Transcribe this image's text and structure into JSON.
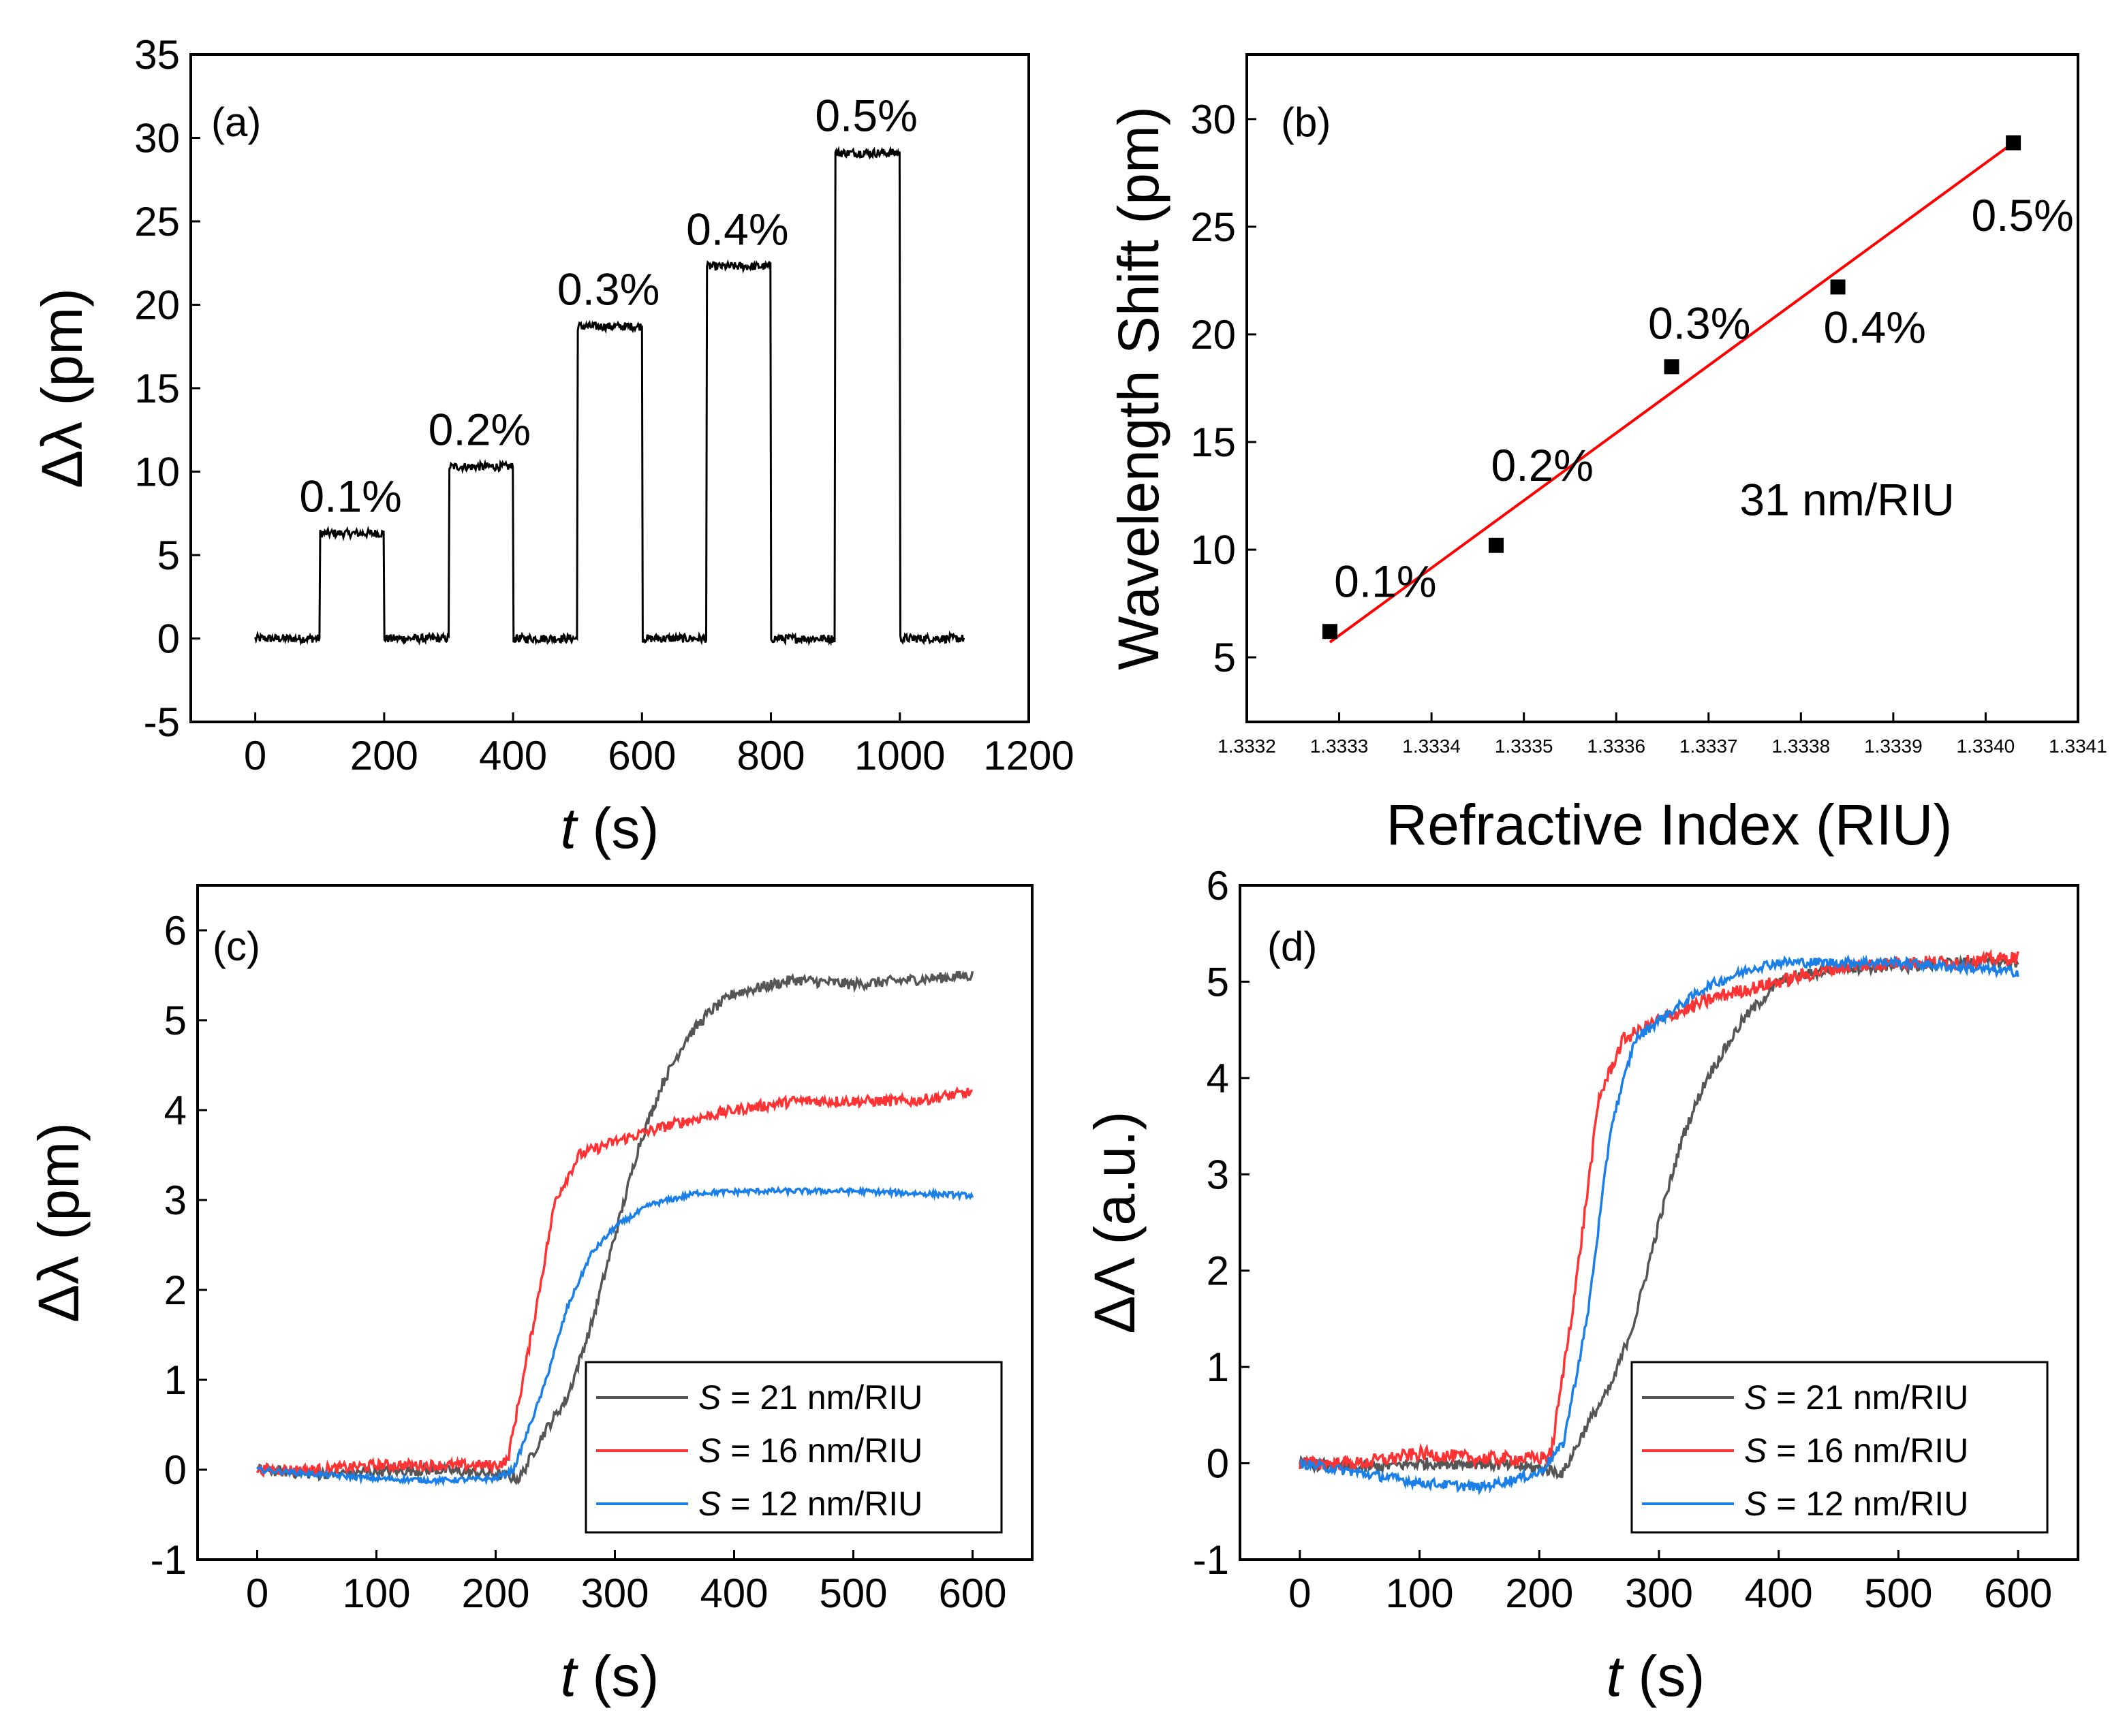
{
  "chart_data": [
    {
      "id": "a",
      "type": "line",
      "panel_label": "(a)",
      "xlabel_italic": "t",
      "xlabel_rest": " (s)",
      "ylabel": "Δλ (pm)",
      "xlim": [
        -100,
        1200
      ],
      "ylim": [
        -5,
        35
      ],
      "xticks": [
        0,
        200,
        400,
        600,
        800,
        1000,
        1200
      ],
      "xtick_labels": [
        "0",
        "200",
        "400",
        "600",
        "800",
        "1000",
        "1200"
      ],
      "yticks": [
        -5,
        0,
        5,
        10,
        15,
        20,
        25,
        30,
        35
      ],
      "ytick_labels": [
        "-5",
        "0",
        "5",
        "10",
        "15",
        "20",
        "25",
        "30",
        "35"
      ],
      "series": [
        {
          "name": "step response",
          "color": "#000000",
          "steps": [
            {
              "start": 100,
              "end": 200,
              "level": 6.3
            },
            {
              "start": 300,
              "end": 400,
              "level": 10.3
            },
            {
              "start": 500,
              "end": 600,
              "level": 18.7
            },
            {
              "start": 700,
              "end": 800,
              "level": 22.3
            },
            {
              "start": 900,
              "end": 1000,
              "level": 29.1
            }
          ],
          "x_range": [
            0,
            1100
          ],
          "noise": 0.25
        }
      ],
      "annotations": [
        {
          "text": "0.1%",
          "x": 148,
          "y": 7.6
        },
        {
          "text": "0.2%",
          "x": 348,
          "y": 11.6
        },
        {
          "text": "0.3%",
          "x": 548,
          "y": 20.0
        },
        {
          "text": "0.4%",
          "x": 748,
          "y": 23.6
        },
        {
          "text": "0.5%",
          "x": 948,
          "y": 30.4
        }
      ]
    },
    {
      "id": "b",
      "type": "scatter",
      "panel_label": "(b)",
      "xlabel": "Refractive Index (RIU)",
      "ylabel": "Wavelength Shift (pm)",
      "xlim": [
        1.3332,
        1.3341
      ],
      "ylim": [
        2,
        33
      ],
      "xticks": [
        1.3332,
        1.3333,
        1.3334,
        1.3335,
        1.3336,
        1.3337,
        1.3338,
        1.3339,
        1.334,
        1.3341
      ],
      "xtick_labels": [
        "1.3332",
        "1.3333",
        "1.3334",
        "1.3335",
        "1.3336",
        "1.3337",
        "1.3338",
        "1.3339",
        "1.3340",
        "1.3341"
      ],
      "yticks": [
        5,
        10,
        15,
        20,
        25,
        30
      ],
      "ytick_labels": [
        "5",
        "10",
        "15",
        "20",
        "25",
        "30"
      ],
      "points": [
        {
          "x": 1.33329,
          "y": 6.2
        },
        {
          "x": 1.33347,
          "y": 10.2
        },
        {
          "x": 1.33366,
          "y": 18.5
        },
        {
          "x": 1.33384,
          "y": 22.2
        },
        {
          "x": 1.33403,
          "y": 28.9
        }
      ],
      "fit": {
        "x": [
          1.33329,
          1.33403
        ],
        "y": [
          5.7,
          28.9
        ],
        "color": "#ff0000"
      },
      "annotations": [
        {
          "text": "0.1%",
          "x": 1.33335,
          "y": 7.8
        },
        {
          "text": "0.2%",
          "x": 1.33352,
          "y": 13.2
        },
        {
          "text": "0.3%",
          "x": 1.33369,
          "y": 19.8
        },
        {
          "text": "0.4%",
          "x": 1.33388,
          "y": 19.6
        },
        {
          "text": "0.5%",
          "x": 1.33404,
          "y": 24.8
        },
        {
          "text": "31 nm/RIU",
          "x": 1.33385,
          "y": 11.6
        }
      ]
    },
    {
      "id": "c",
      "type": "line",
      "panel_label": "(c)",
      "xlabel_italic": "t",
      "xlabel_rest": " (s)",
      "ylabel": "Δλ (pm)",
      "xlim": [
        -50,
        650
      ],
      "ylim": [
        -1,
        6.5
      ],
      "xticks": [
        0,
        100,
        200,
        300,
        400,
        500,
        600
      ],
      "xtick_labels": [
        "0",
        "100",
        "200",
        "300",
        "400",
        "500",
        "600"
      ],
      "yticks": [
        -1,
        0,
        1,
        2,
        3,
        4,
        5,
        6
      ],
      "ytick_labels": [
        "-1",
        "0",
        "1",
        "2",
        "3",
        "4",
        "5",
        "6"
      ],
      "series": [
        {
          "name_italic": "S",
          "name_rest": " = 21 nm/RIU",
          "color": "#555555",
          "points": [
            [
              0,
              0
            ],
            [
              50,
              -0.05
            ],
            [
              100,
              -0.02
            ],
            [
              150,
              0
            ],
            [
              200,
              -0.05
            ],
            [
              220,
              -0.1
            ],
            [
              240,
              0.4
            ],
            [
              260,
              0.8
            ],
            [
              280,
              1.6
            ],
            [
              300,
              2.6
            ],
            [
              320,
              3.6
            ],
            [
              340,
              4.3
            ],
            [
              360,
              4.8
            ],
            [
              380,
              5.1
            ],
            [
              400,
              5.3
            ],
            [
              450,
              5.45
            ],
            [
              500,
              5.4
            ],
            [
              550,
              5.45
            ],
            [
              600,
              5.5
            ]
          ],
          "noise": 0.06
        },
        {
          "name_italic": "S",
          "name_rest": " = 16 nm/RIU",
          "color": "#ff3333",
          "points": [
            [
              0,
              0
            ],
            [
              50,
              0
            ],
            [
              100,
              0.05
            ],
            [
              150,
              0.05
            ],
            [
              200,
              0.05
            ],
            [
              210,
              0.1
            ],
            [
              230,
              1.5
            ],
            [
              250,
              3.0
            ],
            [
              270,
              3.5
            ],
            [
              300,
              3.65
            ],
            [
              350,
              3.85
            ],
            [
              400,
              4.0
            ],
            [
              450,
              4.1
            ],
            [
              500,
              4.1
            ],
            [
              550,
              4.1
            ],
            [
              600,
              4.2
            ]
          ],
          "noise": 0.06
        },
        {
          "name_italic": "S",
          "name_rest": " = 12 nm/RIU",
          "color": "#1a7fe6",
          "points": [
            [
              0,
              0
            ],
            [
              50,
              -0.05
            ],
            [
              100,
              -0.1
            ],
            [
              150,
              -0.12
            ],
            [
              200,
              -0.1
            ],
            [
              215,
              0
            ],
            [
              240,
              0.9
            ],
            [
              260,
              1.8
            ],
            [
              280,
              2.4
            ],
            [
              300,
              2.7
            ],
            [
              330,
              2.95
            ],
            [
              370,
              3.08
            ],
            [
              420,
              3.1
            ],
            [
              500,
              3.1
            ],
            [
              600,
              3.05
            ]
          ],
          "noise": 0.03
        }
      ]
    },
    {
      "id": "d",
      "type": "line",
      "panel_label": "(d)",
      "xlabel_italic": "t",
      "xlabel_rest": " (s)",
      "ylabel": "ΔΛ (a.u.)",
      "xlim": [
        -50,
        650
      ],
      "ylim": [
        -1,
        6
      ],
      "xticks": [
        0,
        100,
        200,
        300,
        400,
        500,
        600
      ],
      "xtick_labels": [
        "0",
        "100",
        "200",
        "300",
        "400",
        "500",
        "600"
      ],
      "yticks": [
        -1,
        0,
        1,
        2,
        3,
        4,
        5,
        6
      ],
      "ytick_labels": [
        "-1",
        "0",
        "1",
        "2",
        "3",
        "4",
        "5",
        "6"
      ],
      "series": [
        {
          "name_italic": "S",
          "name_rest": " = 21 nm/RIU",
          "color": "#555555",
          "points": [
            [
              0,
              0
            ],
            [
              50,
              -0.05
            ],
            [
              100,
              0
            ],
            [
              150,
              0
            ],
            [
              200,
              -0.05
            ],
            [
              220,
              -0.1
            ],
            [
              240,
              0.4
            ],
            [
              260,
              0.8
            ],
            [
              280,
              1.5
            ],
            [
              300,
              2.5
            ],
            [
              320,
              3.4
            ],
            [
              340,
              4.0
            ],
            [
              370,
              4.6
            ],
            [
              400,
              5.0
            ],
            [
              450,
              5.15
            ],
            [
              500,
              5.15
            ],
            [
              550,
              5.2
            ],
            [
              600,
              5.2
            ]
          ],
          "noise": 0.06
        },
        {
          "name_italic": "S",
          "name_rest": " = 16 nm/RIU",
          "color": "#ff3333",
          "points": [
            [
              0,
              0
            ],
            [
              50,
              0
            ],
            [
              100,
              0.1
            ],
            [
              150,
              0.05
            ],
            [
              200,
              0.05
            ],
            [
              210,
              0.1
            ],
            [
              230,
              1.8
            ],
            [
              250,
              3.8
            ],
            [
              270,
              4.4
            ],
            [
              300,
              4.6
            ],
            [
              350,
              4.85
            ],
            [
              400,
              5.0
            ],
            [
              450,
              5.15
            ],
            [
              500,
              5.2
            ],
            [
              550,
              5.2
            ],
            [
              600,
              5.25
            ]
          ],
          "noise": 0.07
        },
        {
          "name_italic": "S",
          "name_rest": " = 12 nm/RIU",
          "color": "#1a7fe6",
          "points": [
            [
              0,
              0
            ],
            [
              50,
              -0.1
            ],
            [
              100,
              -0.2
            ],
            [
              150,
              -0.25
            ],
            [
              200,
              -0.1
            ],
            [
              220,
              0.2
            ],
            [
              240,
              1.5
            ],
            [
              260,
              3.5
            ],
            [
              280,
              4.4
            ],
            [
              300,
              4.6
            ],
            [
              340,
              4.95
            ],
            [
              380,
              5.15
            ],
            [
              400,
              5.2
            ],
            [
              450,
              5.2
            ],
            [
              500,
              5.2
            ],
            [
              550,
              5.15
            ],
            [
              600,
              5.1
            ]
          ],
          "noise": 0.05
        }
      ]
    }
  ]
}
